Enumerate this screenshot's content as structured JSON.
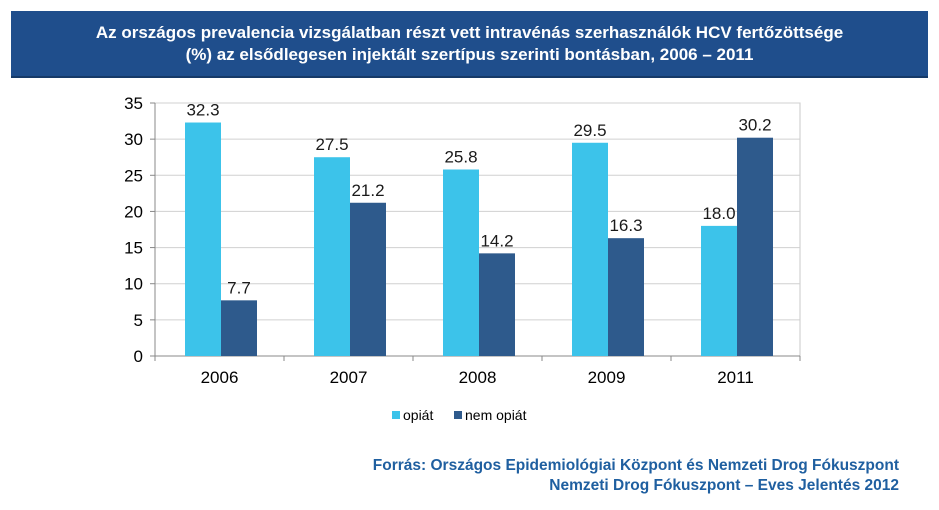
{
  "title": {
    "line1": "Az országos prevalencia vizsgálatban részt vett intravénás szerhasználók HCV fertőzöttsége",
    "line2": "(%) az elsődlegesen injektált szertípus szerinti bontásban, 2006 – 2011"
  },
  "source": {
    "line1": "Forrás: Országos Epidemiológiai Központ és Nemzeti Drog Fókuszpont",
    "line2": "Nemzeti Drog Fókuszpont – Eves Jelentés 2012"
  },
  "colors": {
    "title_bg": "#1f4e8c",
    "opiat": "#3cc3ea",
    "nem_opiat": "#2e5a8c",
    "source_text": "#1f5fa0"
  },
  "chart_data": {
    "type": "bar",
    "categories": [
      "2006",
      "2007",
      "2008",
      "2009",
      "2011"
    ],
    "series": [
      {
        "name": "opiát",
        "values": [
          32.3,
          27.5,
          25.8,
          29.5,
          18.0
        ],
        "labels": [
          "32.3",
          "27.5",
          "25.8",
          "29.5",
          "18.0"
        ]
      },
      {
        "name": "nem opiát",
        "values": [
          7.7,
          21.2,
          14.2,
          16.3,
          30.2
        ],
        "labels": [
          "7.7",
          "21.2",
          "14.2",
          "16.3",
          "30.2"
        ]
      }
    ],
    "yticks": [
      "0",
      "5",
      "10",
      "15",
      "20",
      "25",
      "30",
      "35"
    ],
    "ylim": [
      0,
      35
    ],
    "grid": true,
    "legend_position": "bottom-center",
    "xlabel": "",
    "ylabel": ""
  }
}
